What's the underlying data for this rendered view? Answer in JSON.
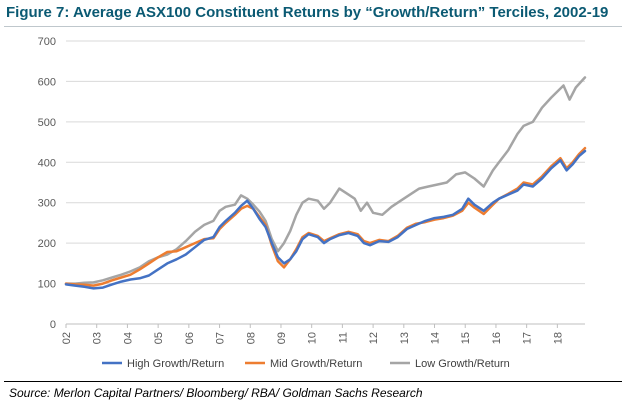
{
  "header": {
    "title": "Figure 7: Average ASX100 Constituent Returns by “Growth/Return” Terciles, 2002-19"
  },
  "footer": {
    "source": "Source: Merlon Capital Partners/ Bloomberg/ RBA/ Goldman Sachs Research"
  },
  "chart_data": {
    "type": "line",
    "title": "",
    "xlabel": "",
    "ylabel": "",
    "ylim": [
      0,
      700
    ],
    "yticks": [
      0,
      100,
      200,
      300,
      400,
      500,
      600,
      700
    ],
    "xlim": [
      2002.0,
      2018.9
    ],
    "xticks": [
      {
        "value": 2002,
        "label": "02"
      },
      {
        "value": 2003,
        "label": "03"
      },
      {
        "value": 2004,
        "label": "04"
      },
      {
        "value": 2005,
        "label": "05"
      },
      {
        "value": 2006,
        "label": "06"
      },
      {
        "value": 2007,
        "label": "07"
      },
      {
        "value": 2008,
        "label": "08"
      },
      {
        "value": 2009,
        "label": "09"
      },
      {
        "value": 2010,
        "label": "10"
      },
      {
        "value": 2011,
        "label": "11"
      },
      {
        "value": 2012,
        "label": "12"
      },
      {
        "value": 2013,
        "label": "13"
      },
      {
        "value": 2014,
        "label": "14"
      },
      {
        "value": 2015,
        "label": "15"
      },
      {
        "value": 2016,
        "label": "16"
      },
      {
        "value": 2017,
        "label": "17"
      },
      {
        "value": 2018,
        "label": "18"
      }
    ],
    "grid": "horizontal",
    "legend_position": "bottom",
    "series": [
      {
        "name": "High Growth/Return",
        "color": "#4472c4",
        "points": [
          [
            2002.0,
            98
          ],
          [
            2002.3,
            95
          ],
          [
            2002.6,
            92
          ],
          [
            2002.9,
            88
          ],
          [
            2003.2,
            90
          ],
          [
            2003.5,
            98
          ],
          [
            2003.8,
            105
          ],
          [
            2004.1,
            110
          ],
          [
            2004.4,
            113
          ],
          [
            2004.7,
            120
          ],
          [
            2005.0,
            135
          ],
          [
            2005.3,
            150
          ],
          [
            2005.6,
            160
          ],
          [
            2005.9,
            172
          ],
          [
            2006.2,
            190
          ],
          [
            2006.5,
            208
          ],
          [
            2006.8,
            215
          ],
          [
            2007.0,
            240
          ],
          [
            2007.2,
            255
          ],
          [
            2007.5,
            275
          ],
          [
            2007.7,
            292
          ],
          [
            2007.9,
            305
          ],
          [
            2008.1,
            285
          ],
          [
            2008.3,
            260
          ],
          [
            2008.5,
            240
          ],
          [
            2008.7,
            200
          ],
          [
            2008.9,
            165
          ],
          [
            2009.1,
            150
          ],
          [
            2009.3,
            160
          ],
          [
            2009.5,
            180
          ],
          [
            2009.7,
            210
          ],
          [
            2009.9,
            222
          ],
          [
            2010.2,
            215
          ],
          [
            2010.4,
            200
          ],
          [
            2010.6,
            210
          ],
          [
            2010.9,
            220
          ],
          [
            2011.2,
            225
          ],
          [
            2011.5,
            218
          ],
          [
            2011.7,
            200
          ],
          [
            2011.9,
            195
          ],
          [
            2012.2,
            205
          ],
          [
            2012.5,
            203
          ],
          [
            2012.8,
            215
          ],
          [
            2013.1,
            235
          ],
          [
            2013.4,
            245
          ],
          [
            2013.7,
            255
          ],
          [
            2014.0,
            262
          ],
          [
            2014.3,
            265
          ],
          [
            2014.6,
            270
          ],
          [
            2014.9,
            285
          ],
          [
            2015.1,
            310
          ],
          [
            2015.3,
            295
          ],
          [
            2015.6,
            280
          ],
          [
            2015.9,
            300
          ],
          [
            2016.1,
            310
          ],
          [
            2016.4,
            320
          ],
          [
            2016.7,
            330
          ],
          [
            2016.9,
            345
          ],
          [
            2017.2,
            340
          ],
          [
            2017.5,
            360
          ],
          [
            2017.8,
            385
          ],
          [
            2018.1,
            405
          ],
          [
            2018.3,
            380
          ],
          [
            2018.5,
            395
          ],
          [
            2018.7,
            415
          ],
          [
            2018.9,
            428
          ]
        ]
      },
      {
        "name": "Mid Growth/Return",
        "color": "#ed7d31",
        "points": [
          [
            2002.0,
            100
          ],
          [
            2002.3,
            98
          ],
          [
            2002.6,
            97
          ],
          [
            2002.9,
            95
          ],
          [
            2003.2,
            100
          ],
          [
            2003.5,
            108
          ],
          [
            2003.8,
            115
          ],
          [
            2004.1,
            122
          ],
          [
            2004.4,
            135
          ],
          [
            2004.7,
            150
          ],
          [
            2005.0,
            165
          ],
          [
            2005.3,
            178
          ],
          [
            2005.6,
            180
          ],
          [
            2005.9,
            190
          ],
          [
            2006.2,
            200
          ],
          [
            2006.5,
            210
          ],
          [
            2006.8,
            212
          ],
          [
            2007.0,
            235
          ],
          [
            2007.2,
            250
          ],
          [
            2007.5,
            270
          ],
          [
            2007.7,
            285
          ],
          [
            2007.9,
            292
          ],
          [
            2008.1,
            285
          ],
          [
            2008.3,
            265
          ],
          [
            2008.5,
            245
          ],
          [
            2008.7,
            195
          ],
          [
            2008.9,
            155
          ],
          [
            2009.1,
            140
          ],
          [
            2009.3,
            160
          ],
          [
            2009.5,
            185
          ],
          [
            2009.7,
            215
          ],
          [
            2009.9,
            225
          ],
          [
            2010.2,
            218
          ],
          [
            2010.4,
            205
          ],
          [
            2010.6,
            212
          ],
          [
            2010.9,
            222
          ],
          [
            2011.2,
            228
          ],
          [
            2011.5,
            222
          ],
          [
            2011.7,
            205
          ],
          [
            2011.9,
            200
          ],
          [
            2012.2,
            208
          ],
          [
            2012.5,
            205
          ],
          [
            2012.8,
            218
          ],
          [
            2013.1,
            238
          ],
          [
            2013.4,
            248
          ],
          [
            2013.7,
            252
          ],
          [
            2014.0,
            258
          ],
          [
            2014.3,
            262
          ],
          [
            2014.6,
            268
          ],
          [
            2014.9,
            280
          ],
          [
            2015.1,
            300
          ],
          [
            2015.3,
            288
          ],
          [
            2015.6,
            272
          ],
          [
            2015.9,
            295
          ],
          [
            2016.1,
            310
          ],
          [
            2016.4,
            322
          ],
          [
            2016.7,
            335
          ],
          [
            2016.9,
            350
          ],
          [
            2017.2,
            345
          ],
          [
            2017.5,
            365
          ],
          [
            2017.8,
            390
          ],
          [
            2018.1,
            410
          ],
          [
            2018.3,
            385
          ],
          [
            2018.5,
            400
          ],
          [
            2018.7,
            420
          ],
          [
            2018.9,
            435
          ]
        ]
      },
      {
        "name": "Low Growth/Return",
        "color": "#a5a5a5",
        "points": [
          [
            2002.0,
            100
          ],
          [
            2002.3,
            100
          ],
          [
            2002.6,
            102
          ],
          [
            2002.9,
            103
          ],
          [
            2003.2,
            108
          ],
          [
            2003.5,
            115
          ],
          [
            2003.8,
            122
          ],
          [
            2004.1,
            130
          ],
          [
            2004.4,
            140
          ],
          [
            2004.7,
            155
          ],
          [
            2005.0,
            165
          ],
          [
            2005.3,
            172
          ],
          [
            2005.6,
            185
          ],
          [
            2005.9,
            205
          ],
          [
            2006.2,
            228
          ],
          [
            2006.5,
            245
          ],
          [
            2006.8,
            255
          ],
          [
            2007.0,
            280
          ],
          [
            2007.2,
            290
          ],
          [
            2007.5,
            295
          ],
          [
            2007.7,
            318
          ],
          [
            2007.9,
            310
          ],
          [
            2008.1,
            295
          ],
          [
            2008.3,
            278
          ],
          [
            2008.5,
            255
          ],
          [
            2008.7,
            210
          ],
          [
            2008.9,
            180
          ],
          [
            2009.1,
            200
          ],
          [
            2009.3,
            230
          ],
          [
            2009.5,
            270
          ],
          [
            2009.7,
            300
          ],
          [
            2009.9,
            310
          ],
          [
            2010.2,
            305
          ],
          [
            2010.4,
            285
          ],
          [
            2010.6,
            300
          ],
          [
            2010.9,
            335
          ],
          [
            2011.2,
            320
          ],
          [
            2011.4,
            310
          ],
          [
            2011.6,
            280
          ],
          [
            2011.8,
            300
          ],
          [
            2012.0,
            275
          ],
          [
            2012.3,
            270
          ],
          [
            2012.6,
            290
          ],
          [
            2012.9,
            305
          ],
          [
            2013.2,
            320
          ],
          [
            2013.5,
            335
          ],
          [
            2013.8,
            340
          ],
          [
            2014.1,
            345
          ],
          [
            2014.4,
            350
          ],
          [
            2014.7,
            370
          ],
          [
            2015.0,
            375
          ],
          [
            2015.3,
            360
          ],
          [
            2015.6,
            340
          ],
          [
            2015.9,
            380
          ],
          [
            2016.1,
            400
          ],
          [
            2016.4,
            430
          ],
          [
            2016.7,
            470
          ],
          [
            2016.9,
            490
          ],
          [
            2017.2,
            500
          ],
          [
            2017.5,
            535
          ],
          [
            2017.8,
            560
          ],
          [
            2018.0,
            575
          ],
          [
            2018.2,
            590
          ],
          [
            2018.4,
            555
          ],
          [
            2018.6,
            585
          ],
          [
            2018.9,
            610
          ]
        ]
      }
    ]
  }
}
